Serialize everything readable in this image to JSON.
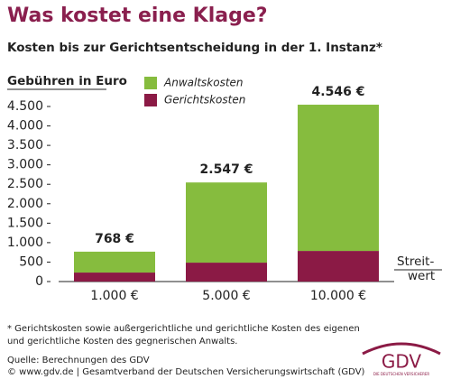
{
  "chart_data": {
    "type": "stacked_bar",
    "title": "Was kostet eine Klage?",
    "subtitle": "Kosten bis zur Gerichtsentscheidung in der 1. Instanz*",
    "y_label": "Gebühren in Euro",
    "x_label": [
      "Streit-",
      "wert"
    ],
    "categories": [
      "1.000 €",
      "5.000 €",
      "10.000 €"
    ],
    "series": [
      {
        "name": "Gerichtskosten",
        "color": "#8b1a45",
        "values": [
          231,
          486,
          787
        ]
      },
      {
        "name": "Anwaltskosten",
        "color": "#86bc3e",
        "values": [
          537,
          2061,
          3759
        ]
      }
    ],
    "totals": {
      "values": [
        768,
        2547,
        4546
      ],
      "value_labels": [
        "768 €",
        "2.547 €",
        "4.546 €"
      ]
    },
    "ylim": [
      0,
      4500
    ],
    "yticks": [
      0,
      500,
      {
        "value": 1000,
        "label": "1.000"
      },
      {
        "value": 1500,
        "label": "1.500"
      },
      {
        "value": 2000,
        "label": "2.000"
      },
      {
        "value": 2500,
        "label": "2.500"
      },
      {
        "value": 3000,
        "label": "3.000"
      },
      {
        "value": 3500,
        "label": "3.500"
      },
      {
        "value": 4000,
        "label": "4.000"
      },
      {
        "value": 4500,
        "label": "4.500"
      }
    ],
    "grid": false
  },
  "footnote": [
    "* Gerichtskosten sowie außergerichtliche und gerichtliche Kosten des eigenen",
    "und gerichtliche Kosten des gegnerischen Anwalts."
  ],
  "source": [
    "Quelle: Berechnungen des GDV",
    "© www.gdv.de | Gesamtverband der Deutschen Versicherungswirtschaft (GDV)"
  ],
  "logo": {
    "text": "GDV",
    "tagline": "DIE DEUTSCHEN VERSICHERER"
  }
}
